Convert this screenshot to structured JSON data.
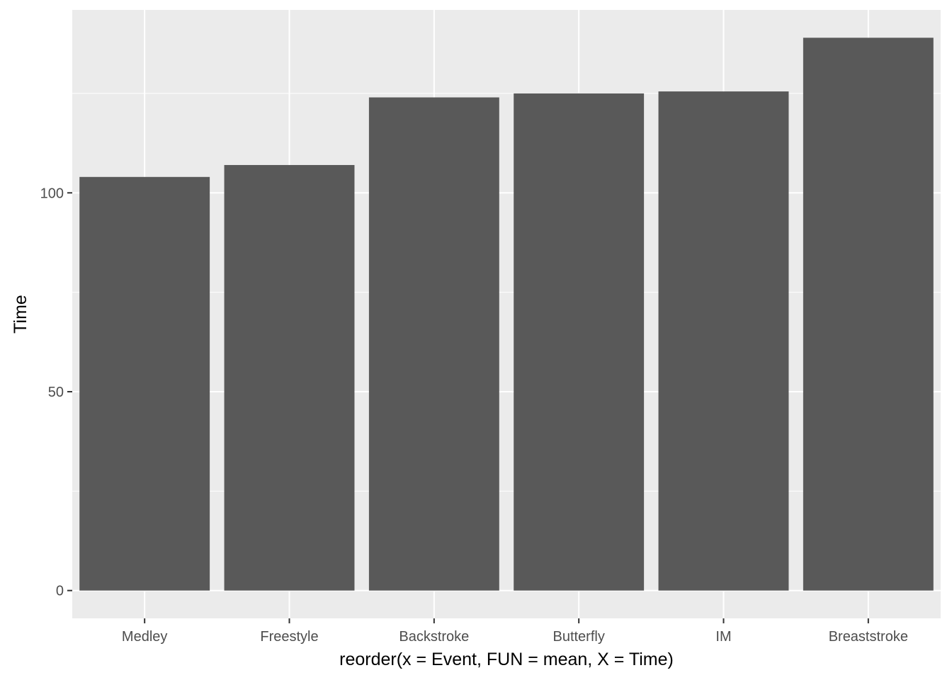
{
  "chart_data": {
    "type": "bar",
    "categories": [
      "Medley",
      "Freestyle",
      "Backstroke",
      "Butterfly",
      "IM",
      "Breaststroke"
    ],
    "values": [
      104,
      107,
      124,
      125,
      125.5,
      139
    ],
    "title": "",
    "xlabel": "reorder(x = Event, FUN = mean, X = Time)",
    "ylabel": "Time",
    "ylim": [
      -7,
      146
    ],
    "yticks": [
      0,
      50,
      100
    ],
    "ytick_labels": [
      "0",
      "50",
      "100"
    ],
    "grid": true,
    "legend": "none"
  },
  "colors": {
    "panel_background": "#ebebeb",
    "grid_major": "#ffffff",
    "grid_minor": "#f5f5f5",
    "bar_fill": "#595959",
    "tick_color": "#333333",
    "tick_label_color": "#4d4d4d"
  }
}
